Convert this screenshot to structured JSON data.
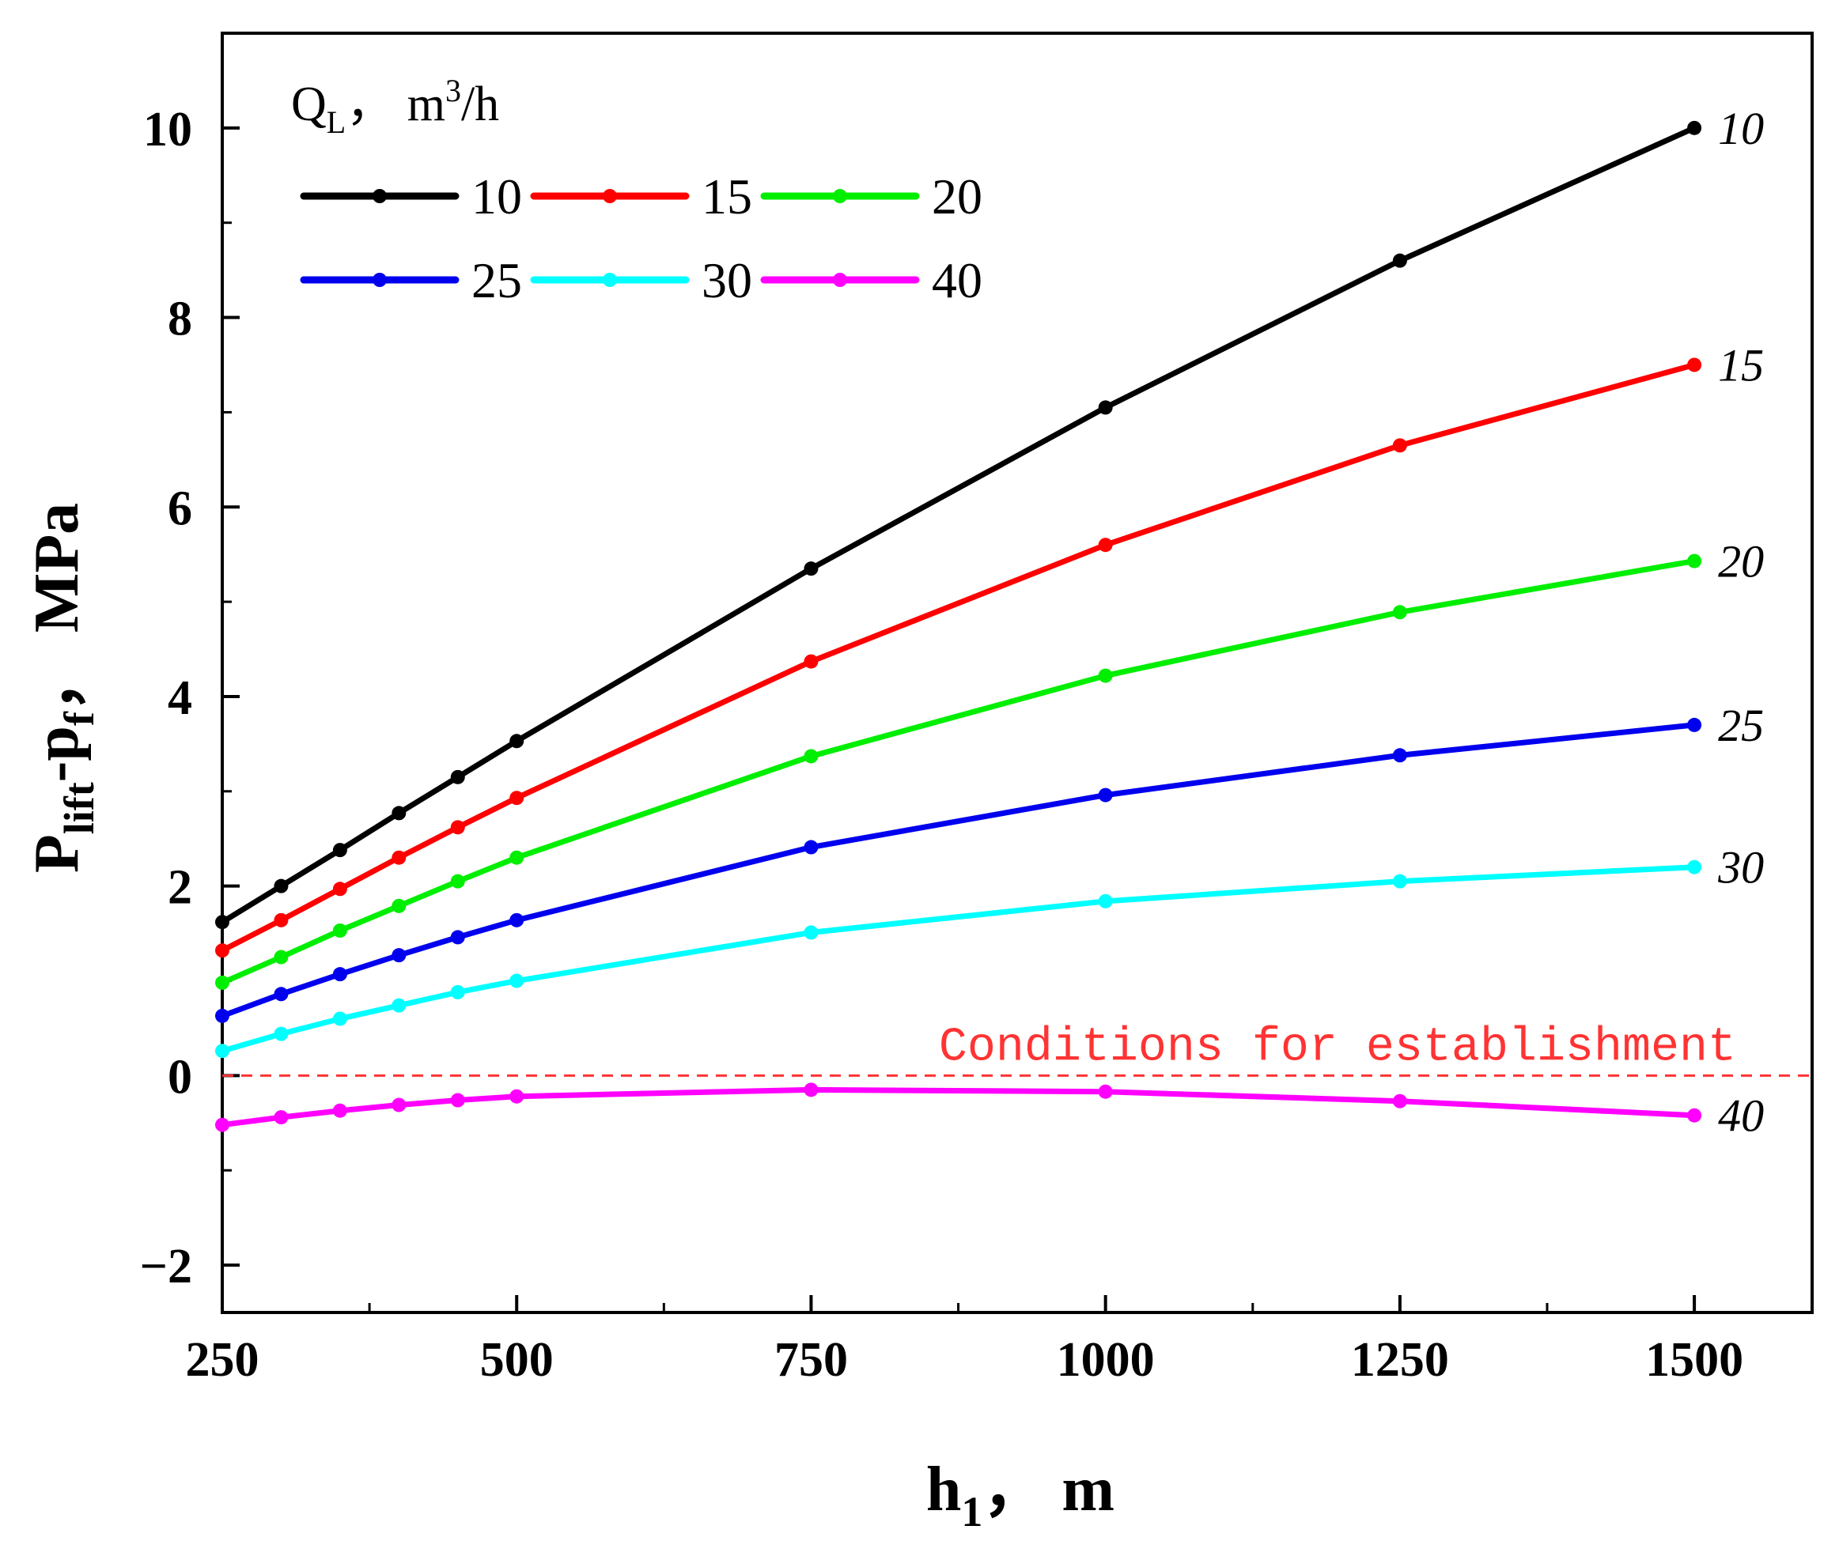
{
  "chart_data": {
    "type": "line",
    "xlabel": "h",
    "xlabel_sub": "1",
    "xlabel_suffix": "， m",
    "ylabel": "P",
    "ylabel_sub1": "lift",
    "ylabel_mid": "-p",
    "ylabel_sub2": "f",
    "ylabel_suffix": "， MPa",
    "xlim": [
      250,
      1600
    ],
    "ylim": [
      -2.5,
      11
    ],
    "x_ticks": [
      250,
      500,
      750,
      1000,
      1250,
      1500
    ],
    "x_tick_labels": [
      "250",
      "500",
      "750",
      "1000",
      "1250",
      "1500"
    ],
    "y_ticks": [
      -2,
      0,
      2,
      4,
      6,
      8,
      10
    ],
    "y_tick_labels": [
      "−2",
      "0",
      "2",
      "4",
      "6",
      "8",
      "10"
    ],
    "legend_title": "Q",
    "legend_title_sub": "L",
    "legend_title_unit": "， m",
    "legend_title_sup": "3",
    "legend_title_end": "/h",
    "legend_position": "top-left",
    "x": [
      250,
      300,
      350,
      400,
      450,
      500,
      750,
      1000,
      1250,
      1500
    ],
    "series": [
      {
        "name": "10",
        "label": "10",
        "color": "#000000",
        "values": [
          1.62,
          2.0,
          2.38,
          2.77,
          3.15,
          3.53,
          5.35,
          7.05,
          8.6,
          10.0
        ]
      },
      {
        "name": "15",
        "label": "15",
        "color": "#ff0000",
        "values": [
          1.32,
          1.64,
          1.97,
          2.3,
          2.62,
          2.93,
          4.37,
          5.6,
          6.65,
          7.5
        ]
      },
      {
        "name": "20",
        "label": "20",
        "color": "#00ee00",
        "values": [
          0.98,
          1.25,
          1.53,
          1.79,
          2.05,
          2.3,
          3.37,
          4.22,
          4.89,
          5.43
        ]
      },
      {
        "name": "25",
        "label": "25",
        "color": "#0000ee",
        "values": [
          0.63,
          0.86,
          1.07,
          1.27,
          1.46,
          1.64,
          2.41,
          2.96,
          3.38,
          3.7
        ]
      },
      {
        "name": "30",
        "label": "30",
        "color": "#00ffff",
        "values": [
          0.26,
          0.44,
          0.6,
          0.74,
          0.88,
          1.0,
          1.51,
          1.84,
          2.05,
          2.2
        ]
      },
      {
        "name": "40",
        "label": "40",
        "color": "#ff00ff",
        "values": [
          -0.52,
          -0.44,
          -0.37,
          -0.31,
          -0.26,
          -0.22,
          -0.15,
          -0.17,
          -0.27,
          -0.42
        ]
      }
    ],
    "reference_line": {
      "y": 0,
      "color": "#ff3333",
      "label": "Conditions for establishment"
    }
  }
}
